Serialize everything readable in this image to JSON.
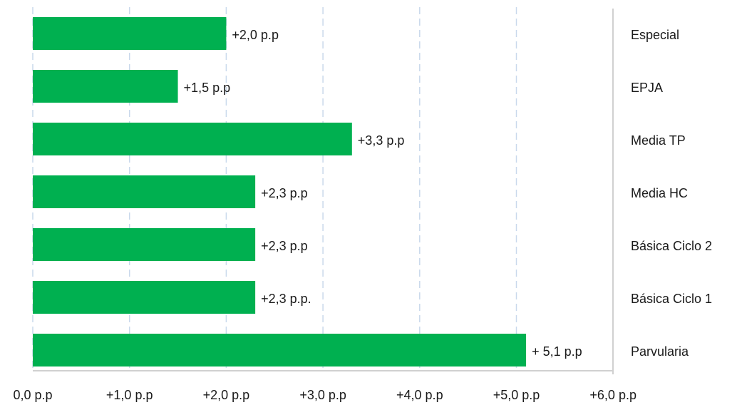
{
  "chart_data": {
    "type": "bar",
    "orientation": "horizontal",
    "title": "",
    "xlabel": "",
    "ylabel": "",
    "xlim": [
      0,
      6
    ],
    "grid": true,
    "legend": "none",
    "categories": [
      "Especial",
      "EPJA",
      "Media TP",
      "Media HC",
      "Básica Ciclo 2",
      "Básica Ciclo 1",
      "Parvularia"
    ],
    "values": [
      2.0,
      1.5,
      3.3,
      2.3,
      2.3,
      2.3,
      5.1
    ],
    "data_labels": [
      "+2,0 p.p",
      "+1,5 p.p",
      "+3,3 p.p",
      "+2,3 p.p",
      "+2,3 p.p",
      "+2,3 p.p.",
      "+ 5,1 p.p"
    ],
    "tick_values": [
      0,
      1,
      2,
      3,
      4,
      5,
      6
    ],
    "tick_labels": [
      "0,0 p.p",
      "+1,0 p.p",
      "+2,0 p.p",
      "+3,0 p.p",
      "+4,0 p.p",
      "+5,0 p.p",
      "+6,0 p.p"
    ],
    "colors": {
      "bar": "#00b050",
      "grid": "#c9d9ec",
      "axis": "#d0d0d0"
    }
  }
}
